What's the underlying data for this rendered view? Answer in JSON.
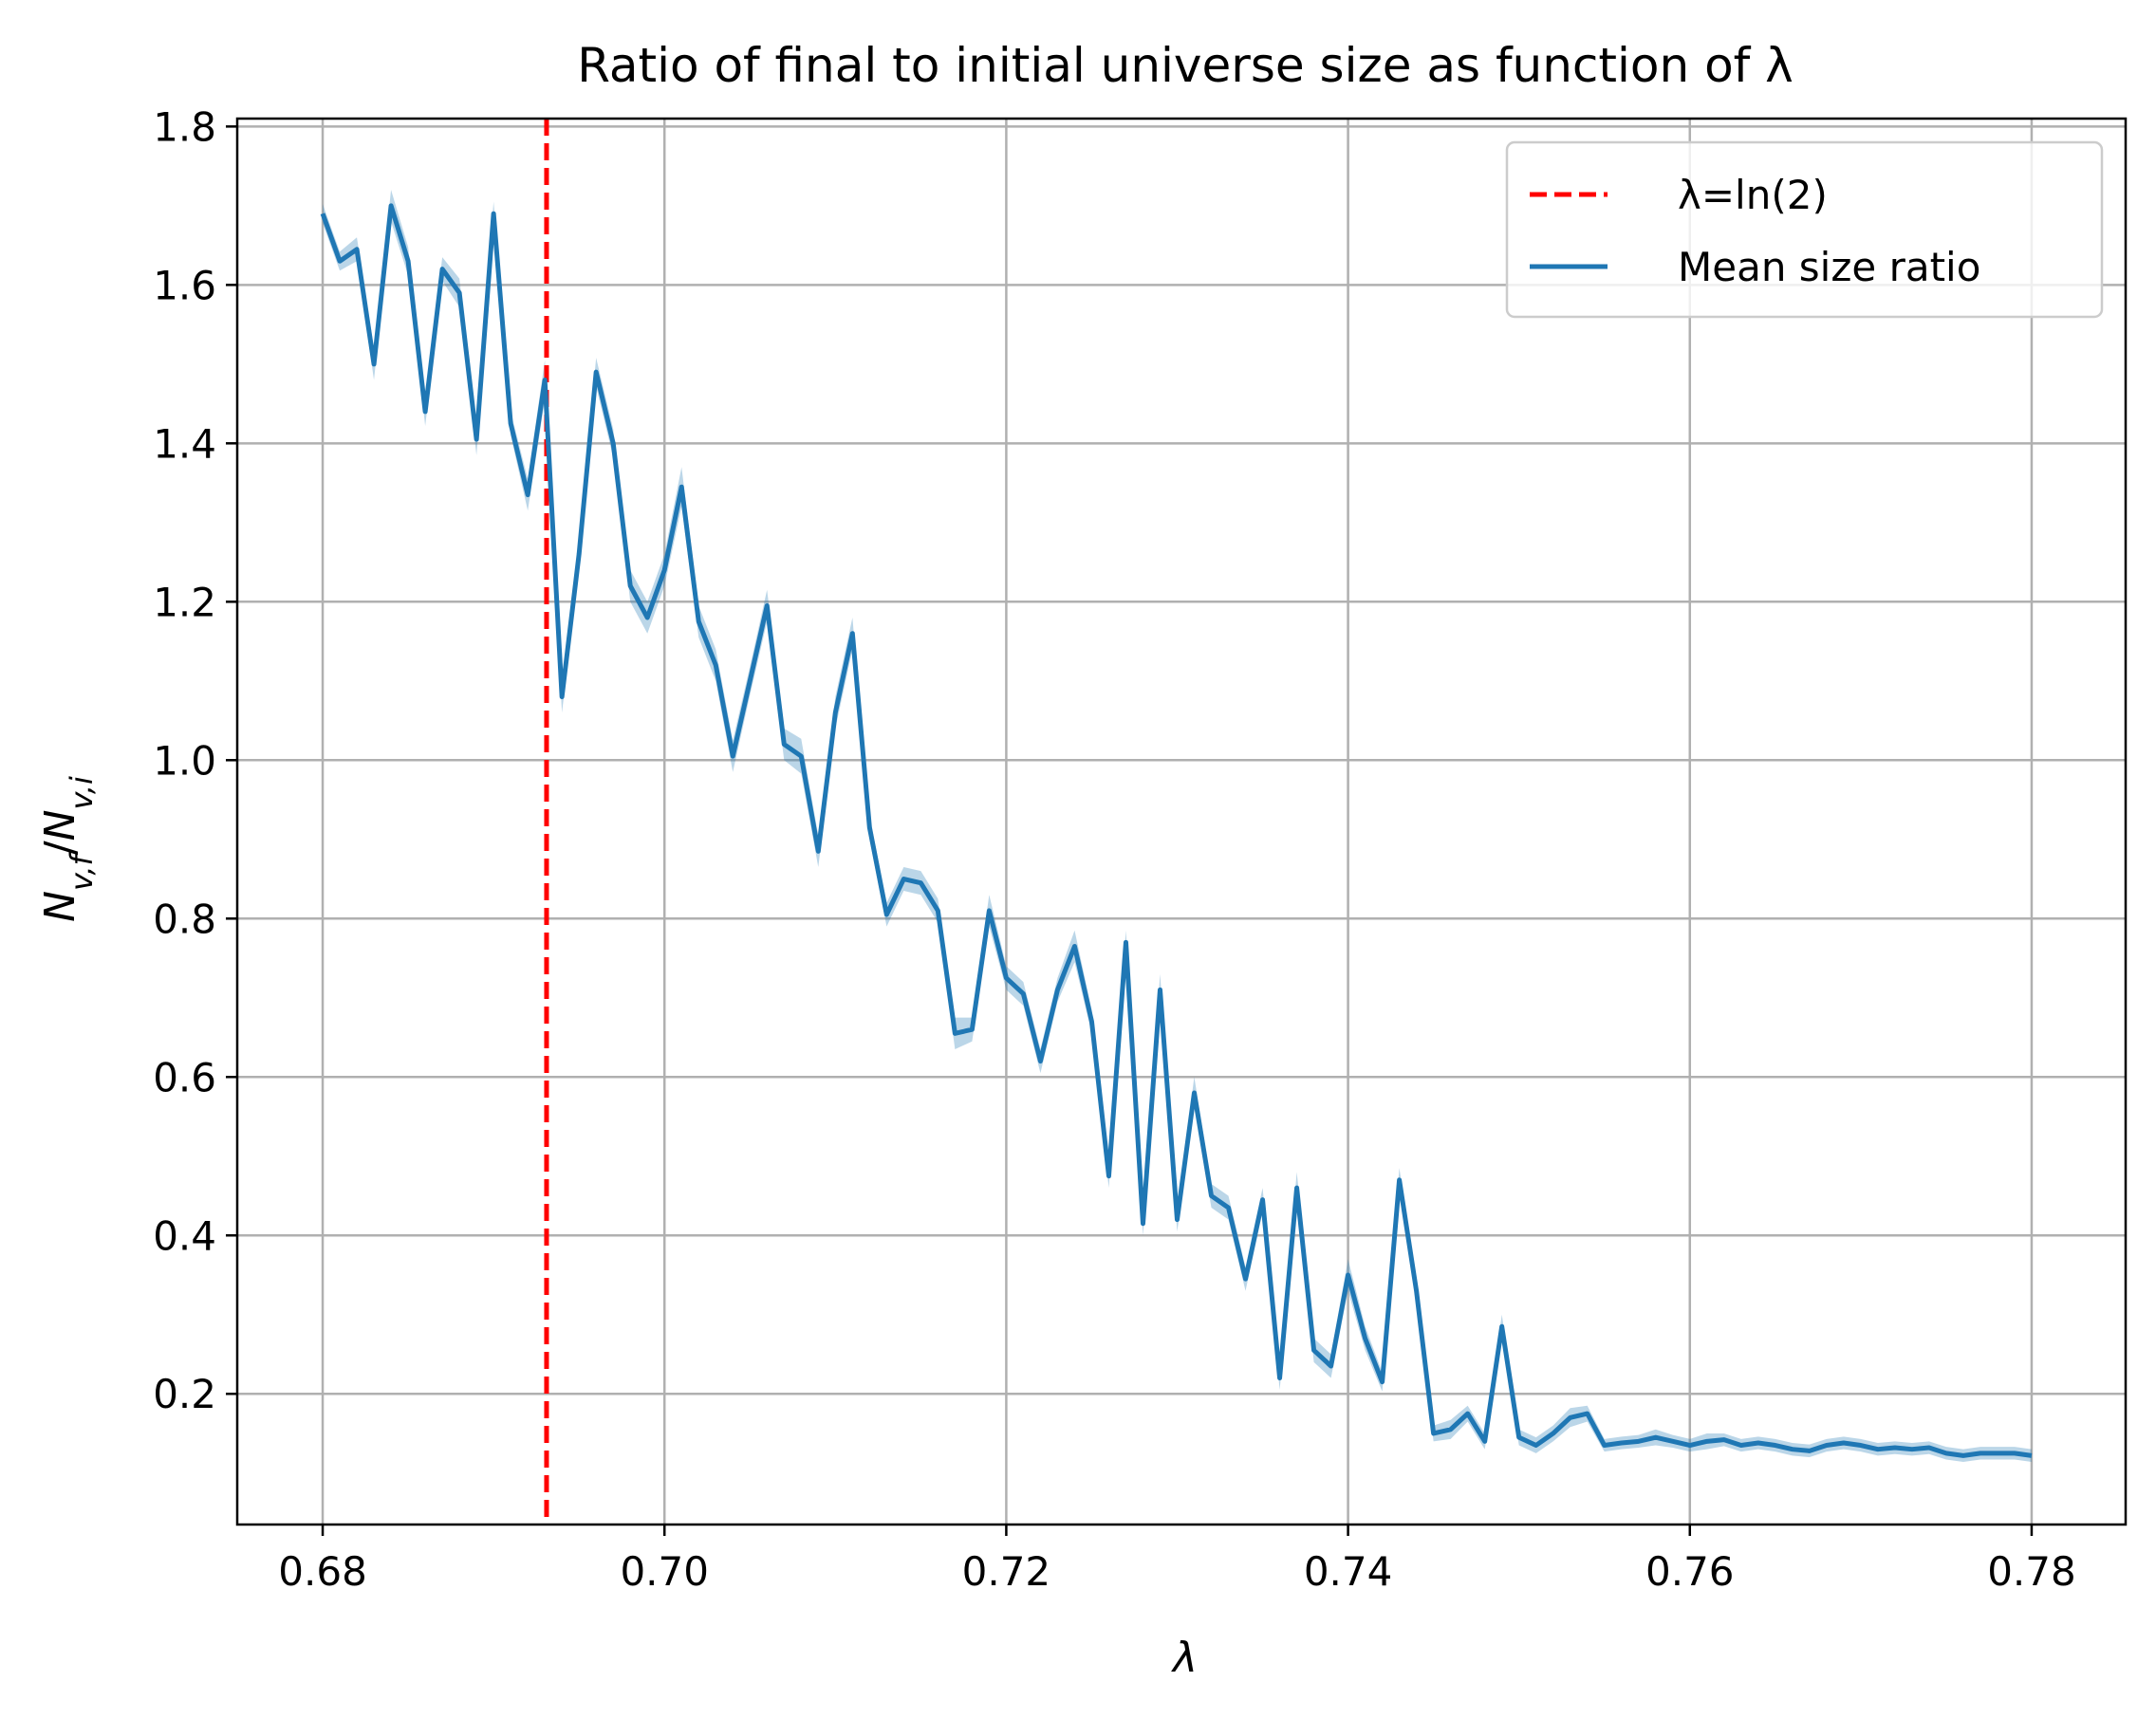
{
  "chart_data": {
    "type": "line",
    "title": "Ratio of final to initial universe size as function of λ",
    "xlabel": "λ",
    "ylabel": "N_{v,f}/N_{v,i}",
    "xlim": [
      0.675,
      0.7855
    ],
    "ylim": [
      0.035,
      1.81
    ],
    "xticks": [
      0.68,
      0.7,
      0.72,
      0.74,
      0.76,
      0.78
    ],
    "xtick_labels": [
      "0.68",
      "0.70",
      "0.72",
      "0.74",
      "0.76",
      "0.78"
    ],
    "yticks": [
      0.2,
      0.4,
      0.6,
      0.8,
      1.0,
      1.2,
      1.4,
      1.6,
      1.8
    ],
    "ytick_labels": [
      "0.2",
      "0.4",
      "0.6",
      "0.8",
      "1.0",
      "1.2",
      "1.4",
      "1.6",
      "1.8"
    ],
    "grid": true,
    "legend_position": "top-right",
    "reference_line": {
      "name": "λ=ln(2)",
      "x": 0.6931,
      "color": "#ff0000",
      "style": "dashed"
    },
    "series": [
      {
        "name": "Mean size ratio",
        "color": "#1f77b4",
        "band_color": "#1f77b4",
        "band_opacity": 0.3,
        "x": [
          0.68,
          0.681,
          0.682,
          0.683,
          0.684,
          0.685,
          0.686,
          0.687,
          0.688,
          0.689,
          0.69,
          0.691,
          0.692,
          0.693,
          0.694,
          0.695,
          0.696,
          0.697,
          0.698,
          0.699,
          0.7,
          0.701,
          0.702,
          0.703,
          0.704,
          0.705,
          0.706,
          0.707,
          0.708,
          0.709,
          0.71,
          0.711,
          0.712,
          0.713,
          0.714,
          0.715,
          0.716,
          0.717,
          0.718,
          0.719,
          0.72,
          0.721,
          0.722,
          0.723,
          0.724,
          0.725,
          0.726,
          0.727,
          0.728,
          0.729,
          0.73,
          0.731,
          0.732,
          0.733,
          0.734,
          0.735,
          0.736,
          0.737,
          0.738,
          0.739,
          0.74,
          0.741,
          0.742,
          0.743,
          0.744,
          0.745,
          0.746,
          0.747,
          0.748,
          0.749,
          0.75,
          0.751,
          0.752,
          0.753,
          0.754,
          0.755,
          0.756,
          0.757,
          0.758,
          0.759,
          0.76,
          0.761,
          0.762,
          0.763,
          0.764,
          0.765,
          0.766,
          0.767,
          0.768,
          0.769,
          0.77,
          0.771,
          0.772,
          0.773,
          0.774,
          0.775,
          0.776,
          0.777,
          0.778,
          0.779,
          0.78
        ],
        "values": [
          1.69,
          1.63,
          1.645,
          1.5,
          1.7,
          1.63,
          1.44,
          1.62,
          1.59,
          1.405,
          1.69,
          1.425,
          1.335,
          1.48,
          1.08,
          1.26,
          1.49,
          1.4,
          1.22,
          1.18,
          1.24,
          1.345,
          1.175,
          1.12,
          1.005,
          1.1,
          1.195,
          1.02,
          1.005,
          0.885,
          1.06,
          1.16,
          0.915,
          0.805,
          0.85,
          0.845,
          0.81,
          0.655,
          0.66,
          0.81,
          0.725,
          0.705,
          0.62,
          0.71,
          0.765,
          0.67,
          0.475,
          0.77,
          0.415,
          0.71,
          0.42,
          0.58,
          0.45,
          0.435,
          0.345,
          0.445,
          0.22,
          0.46,
          0.255,
          0.235,
          0.35,
          0.27,
          0.215,
          0.47,
          0.33,
          0.15,
          0.155,
          0.175,
          0.14,
          0.285,
          0.145,
          0.135,
          0.15,
          0.17,
          0.175,
          0.135,
          0.138,
          0.14,
          0.145,
          0.14,
          0.135,
          0.14,
          0.142,
          0.135,
          0.138,
          0.135,
          0.13,
          0.128,
          0.135,
          0.138,
          0.135,
          0.13,
          0.132,
          0.13,
          0.132,
          0.125,
          0.122,
          0.125,
          0.125,
          0.125,
          0.122
        ],
        "band_halfwidth": [
          0.012,
          0.012,
          0.015,
          0.02,
          0.02,
          0.018,
          0.018,
          0.015,
          0.018,
          0.02,
          0.015,
          0.015,
          0.02,
          0.025,
          0.02,
          0.02,
          0.018,
          0.018,
          0.02,
          0.02,
          0.02,
          0.025,
          0.02,
          0.02,
          0.02,
          0.018,
          0.02,
          0.02,
          0.022,
          0.02,
          0.02,
          0.02,
          0.015,
          0.015,
          0.015,
          0.015,
          0.015,
          0.02,
          0.015,
          0.02,
          0.015,
          0.015,
          0.015,
          0.015,
          0.02,
          0.015,
          0.015,
          0.015,
          0.015,
          0.02,
          0.015,
          0.02,
          0.015,
          0.015,
          0.015,
          0.015,
          0.015,
          0.02,
          0.015,
          0.015,
          0.02,
          0.015,
          0.012,
          0.015,
          0.012,
          0.01,
          0.012,
          0.01,
          0.01,
          0.015,
          0.01,
          0.01,
          0.01,
          0.012,
          0.01,
          0.008,
          0.008,
          0.008,
          0.01,
          0.008,
          0.008,
          0.01,
          0.008,
          0.008,
          0.008,
          0.008,
          0.008,
          0.008,
          0.008,
          0.008,
          0.008,
          0.008,
          0.008,
          0.008,
          0.008,
          0.008,
          0.008,
          0.008,
          0.008,
          0.008,
          0.008
        ]
      }
    ]
  }
}
